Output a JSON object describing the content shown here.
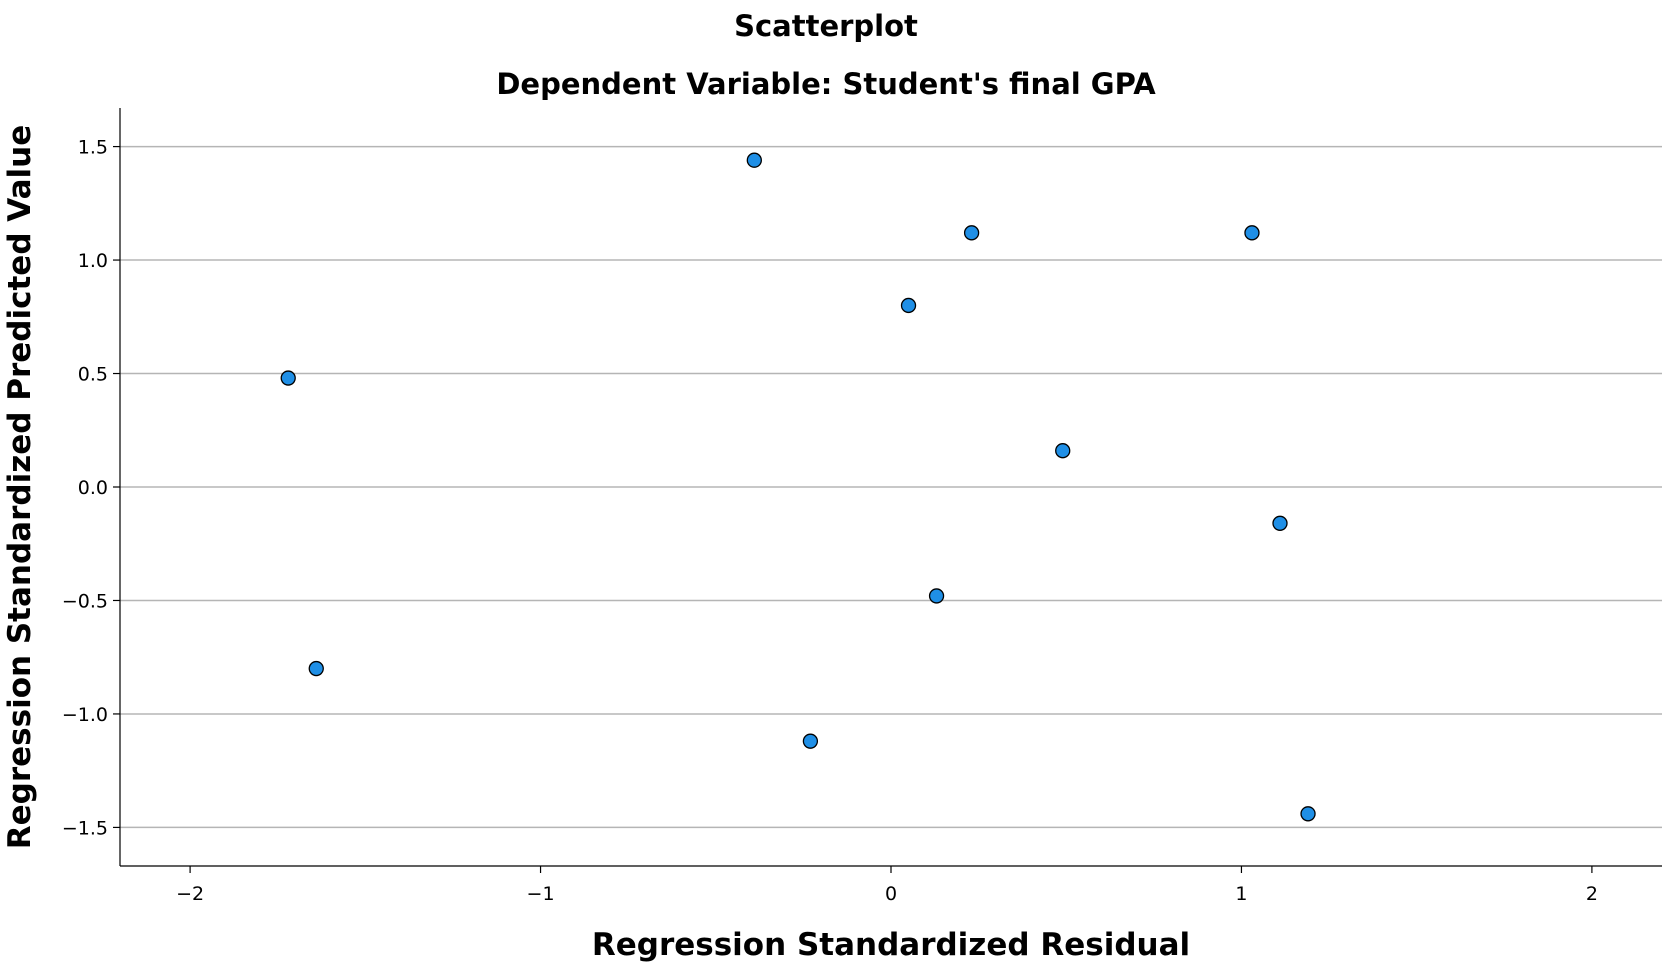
{
  "chart_data": {
    "type": "scatter",
    "title": "Scatterplot",
    "subtitle": "Dependent Variable: Student's final GPA",
    "xlabel": "Regression Standardized Residual",
    "ylabel": "Regression Standardized Predicted Value",
    "xlim": [
      -2.2,
      2.2
    ],
    "ylim": [
      -1.67,
      1.67
    ],
    "xticks": [
      -2,
      -1,
      0,
      1,
      2
    ],
    "xtick_labels": [
      "−2",
      "−1",
      "0",
      "1",
      "2"
    ],
    "yticks": [
      1.5,
      1.0,
      0.5,
      0.0,
      -0.5,
      -1.0,
      -1.5
    ],
    "ytick_labels": [
      "1.5",
      "1.0",
      "0.5",
      "0.0",
      "−0.5",
      "−1.0",
      "−1.5"
    ],
    "grid": "horizontal",
    "point_color": "#1f8fe6",
    "points": [
      {
        "x": -0.39,
        "y": 1.44
      },
      {
        "x": 0.23,
        "y": 1.12
      },
      {
        "x": 1.03,
        "y": 1.12
      },
      {
        "x": 0.05,
        "y": 0.8
      },
      {
        "x": -1.72,
        "y": 0.48
      },
      {
        "x": 0.49,
        "y": 0.16
      },
      {
        "x": 1.11,
        "y": -0.16
      },
      {
        "x": 0.13,
        "y": -0.48
      },
      {
        "x": -1.64,
        "y": -0.8
      },
      {
        "x": -0.23,
        "y": -1.12
      },
      {
        "x": 1.19,
        "y": -1.44
      }
    ]
  }
}
